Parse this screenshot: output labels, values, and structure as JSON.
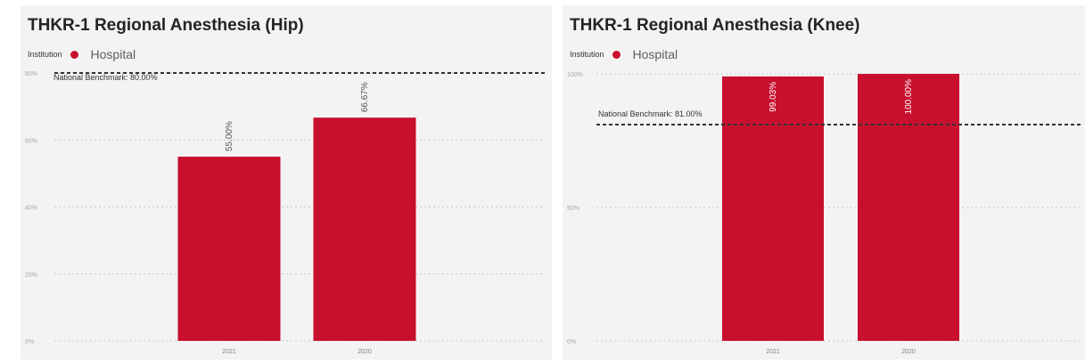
{
  "colors": {
    "bar": "#c8102e",
    "panel_bg": "#f3f3f3",
    "benchmark_line": "#333333",
    "grid": "#c8c8c8"
  },
  "chart_data": [
    {
      "type": "bar",
      "title": "THKR-1 Regional Anesthesia (Hip)",
      "legend_title": "Institution",
      "legend_position": "top-left",
      "categories": [
        "2021",
        "2020"
      ],
      "series": [
        {
          "name": "Hospital",
          "values": [
            55.0,
            66.67
          ]
        }
      ],
      "data_labels": [
        "55.00%",
        "66.67%"
      ],
      "data_label_position": "outside-end",
      "yticks": [
        0,
        20,
        40,
        60,
        80
      ],
      "ytick_labels": [
        "0%",
        "20%",
        "40%",
        "60%",
        "80%"
      ],
      "ylim": [
        0,
        80
      ],
      "benchmark": {
        "label": "National Benchmark: 80.00%",
        "value": 80
      },
      "xlabel": "",
      "ylabel": "",
      "grid": true
    },
    {
      "type": "bar",
      "title": "THKR-1 Regional Anesthesia (Knee)",
      "legend_title": "Institution",
      "legend_position": "top-left",
      "categories": [
        "2021",
        "2020"
      ],
      "series": [
        {
          "name": "Hospital",
          "values": [
            99.03,
            100.0
          ]
        }
      ],
      "data_labels": [
        "99.03%",
        "100.00%"
      ],
      "data_label_position": "inside-end",
      "yticks": [
        0,
        50,
        100
      ],
      "ytick_labels": [
        "0%",
        "50%",
        "100%"
      ],
      "ylim": [
        0,
        100
      ],
      "benchmark": {
        "label": "National Benchmark: 81.00%",
        "value": 81
      },
      "xlabel": "",
      "ylabel": "",
      "grid": true
    }
  ]
}
